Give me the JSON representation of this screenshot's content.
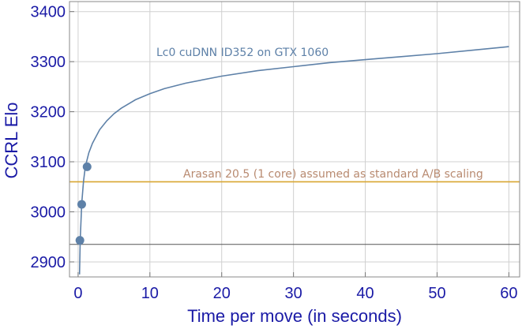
{
  "chart_data": {
    "type": "line",
    "xlabel": "Time per move (in seconds)",
    "ylabel": "CCRL  Elo",
    "xlim": [
      -1.2,
      61.5
    ],
    "ylim": [
      2870,
      3420
    ],
    "x_ticks": [
      0,
      10,
      20,
      30,
      40,
      50,
      60
    ],
    "y_ticks": [
      2900,
      3000,
      3100,
      3200,
      3300,
      3400
    ],
    "grid": true,
    "series": [
      {
        "name": "Lc0 cuDNN  ID352  on GTX 1060",
        "color": "#5e81a8",
        "x": [
          0.2,
          0.3,
          0.5,
          0.75,
          1,
          1.5,
          2,
          3,
          4,
          5,
          6,
          8,
          10,
          12,
          15,
          20,
          25,
          30,
          35,
          40,
          45,
          50,
          55,
          60
        ],
        "y": [
          2875,
          2945,
          3017,
          3060,
          3090,
          3118,
          3137,
          3164,
          3182,
          3196,
          3207,
          3224,
          3236,
          3246,
          3257,
          3271,
          3282,
          3290,
          3298,
          3304,
          3310,
          3316,
          3323,
          3330
        ]
      }
    ],
    "points": {
      "color": "#5e81a8",
      "x": [
        0.25,
        0.5,
        1.25
      ],
      "y": [
        2943,
        3015,
        3090
      ]
    },
    "reference_lines": [
      {
        "label": "Arasan 20.5 (1 core)  assumed as standard A/B scaling",
        "y": 3060,
        "color": "#d9a631",
        "text_color": "#b88a70"
      },
      {
        "label": "",
        "y": 2935,
        "color": "#555555"
      }
    ]
  }
}
